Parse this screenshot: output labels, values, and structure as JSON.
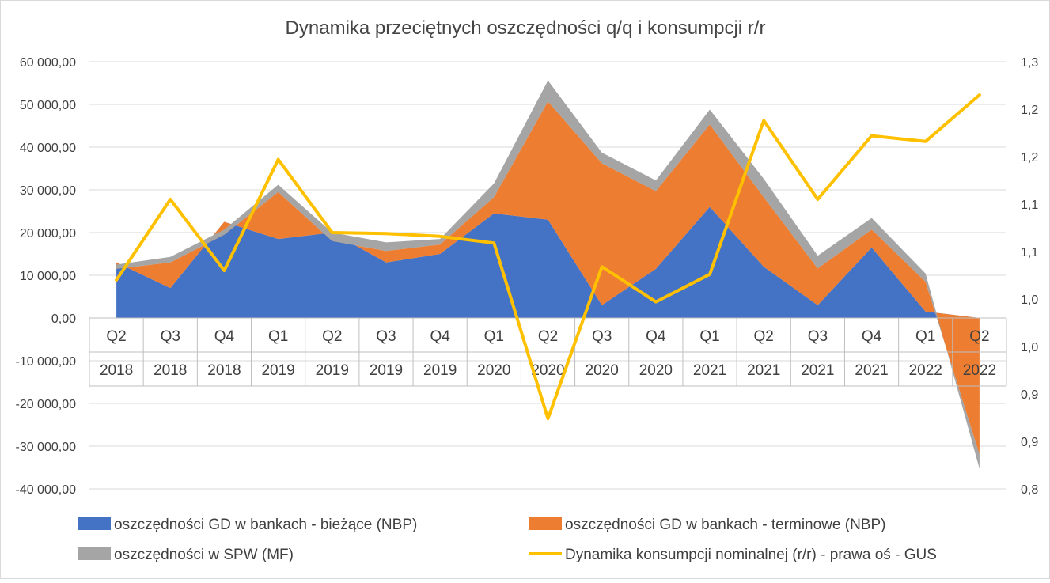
{
  "chart_data": {
    "type": "area",
    "title": "Dynamika przeciętnych  oszczędności  q/q i konsumpcji  r/r",
    "categories": [
      {
        "quarter": "Q2",
        "year": "2018"
      },
      {
        "quarter": "Q3",
        "year": "2018"
      },
      {
        "quarter": "Q4",
        "year": "2018"
      },
      {
        "quarter": "Q1",
        "year": "2019"
      },
      {
        "quarter": "Q2",
        "year": "2019"
      },
      {
        "quarter": "Q3",
        "year": "2019"
      },
      {
        "quarter": "Q4",
        "year": "2019"
      },
      {
        "quarter": "Q1",
        "year": "2020"
      },
      {
        "quarter": "Q2",
        "year": "2020"
      },
      {
        "quarter": "Q3",
        "year": "2020"
      },
      {
        "quarter": "Q4",
        "year": "2020"
      },
      {
        "quarter": "Q1",
        "year": "2021"
      },
      {
        "quarter": "Q2",
        "year": "2021"
      },
      {
        "quarter": "Q3",
        "year": "2021"
      },
      {
        "quarter": "Q4",
        "year": "2021"
      },
      {
        "quarter": "Q1",
        "year": "2022"
      },
      {
        "quarter": "Q2",
        "year": "2022"
      }
    ],
    "left_axis": {
      "min": -40000,
      "max": 60000,
      "step": 10000,
      "tick_labels": [
        "-40 000,00",
        "-30 000,00",
        "-20 000,00",
        "-10 000,00",
        "0,00",
        "10 000,00",
        "20 000,00",
        "30 000,00",
        "40 000,00",
        "50 000,00",
        "60 000,00"
      ]
    },
    "right_axis": {
      "min": 0.8,
      "max": 1.25,
      "step": 0.05,
      "tick_labels": [
        "0,8",
        "0,9",
        "0,9",
        "1,0",
        "1,0",
        "1,1",
        "1,1",
        "1,2",
        "1,2",
        "1,3"
      ]
    },
    "series": [
      {
        "name": "oszczędności GD w bankach - bieżące (NBP)",
        "kind": "stacked-area",
        "axis": "left",
        "color": "#4472C4",
        "values": [
          13000,
          7000,
          22500,
          18500,
          20000,
          13000,
          15000,
          24500,
          23000,
          3000,
          11500,
          26000,
          12000,
          3000,
          16500,
          1500,
          0
        ]
      },
      {
        "name": "oszczędności GD w bankach - terminowe (NBP)",
        "kind": "stacked-area",
        "axis": "left",
        "color": "#ED7D31",
        "values": [
          -1500,
          6000,
          -3000,
          11000,
          -2000,
          2700,
          2200,
          3800,
          27700,
          33200,
          18200,
          19300,
          16300,
          8600,
          4200,
          7000,
          -32000
        ]
      },
      {
        "name": "oszczędności w SPW (MF)",
        "kind": "stacked-area",
        "axis": "left",
        "color": "#A5A5A5",
        "values": [
          1000,
          1300,
          1200,
          1700,
          2000,
          2000,
          1300,
          3200,
          4900,
          2500,
          2500,
          3500,
          4300,
          3000,
          2700,
          1900,
          -3300
        ]
      },
      {
        "name": "Dynamika konsumpcji nominalnej (r/r) -  prawa oś - GUS",
        "kind": "line",
        "axis": "right",
        "color": "#FFC000",
        "values": [
          1.02,
          1.105,
          1.03,
          1.147,
          1.07,
          1.069,
          1.066,
          1.059,
          0.874,
          1.034,
          0.997,
          1.026,
          1.188,
          1.105,
          1.172,
          1.166,
          1.215
        ]
      }
    ],
    "grid": true,
    "legend_position": "bottom"
  }
}
